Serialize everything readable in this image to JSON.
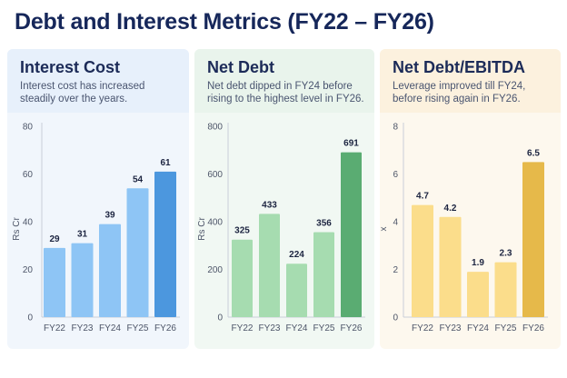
{
  "title": "Debt and Interest Metrics (FY22 – FY26)",
  "panels": [
    {
      "title": "Interest Cost",
      "subtitle": "Interest cost has increased steadily over the years.",
      "colors": {
        "background": "#f1f6fc",
        "bar": "#8ec5f5",
        "highlight": "#4c97de"
      }
    },
    {
      "title": "Net Debt",
      "subtitle": "Net debt dipped in FY24 before rising to the highest level in FY26.",
      "colors": {
        "background": "#f1f8f3",
        "bar": "#a6dcb0",
        "highlight": "#5aac72"
      }
    },
    {
      "title": "Net Debt/EBITDA",
      "subtitle": "Leverage improved till FY24, before rising again in FY26.",
      "colors": {
        "background": "#fdf8ee",
        "bar": "#fbdd8b",
        "highlight": "#e6b94a"
      }
    }
  ],
  "chart_data": [
    {
      "type": "bar",
      "categories": [
        "FY22",
        "FY23",
        "FY24",
        "FY25",
        "FY26"
      ],
      "values": [
        29,
        31,
        39,
        54,
        61
      ],
      "data_labels": [
        "29",
        "31",
        "39",
        "54",
        "61"
      ],
      "title": "Interest Cost",
      "xlabel": "",
      "ylabel": "Rs Cr",
      "ylim": [
        0,
        80
      ],
      "yticks": [
        0,
        20,
        40,
        60,
        80
      ],
      "grid": false,
      "highlight_category": "FY26"
    },
    {
      "type": "bar",
      "categories": [
        "FY22",
        "FY23",
        "FY24",
        "FY25",
        "FY26"
      ],
      "values": [
        325,
        433,
        224,
        356,
        691
      ],
      "data_labels": [
        "325",
        "433",
        "224",
        "356",
        "691"
      ],
      "title": "Net Debt",
      "xlabel": "",
      "ylabel": "Rs Cr",
      "ylim": [
        0,
        800
      ],
      "yticks": [
        0,
        200,
        400,
        600,
        800
      ],
      "grid": false,
      "highlight_category": "FY26"
    },
    {
      "type": "bar",
      "categories": [
        "FY22",
        "FY23",
        "FY24",
        "FY25",
        "FY26"
      ],
      "values": [
        4.7,
        4.2,
        1.9,
        2.3,
        6.5
      ],
      "data_labels": [
        "4.7",
        "4.2",
        "1.9",
        "2.3",
        "6.5"
      ],
      "title": "Net Debt/EBITDA",
      "xlabel": "",
      "ylabel": "x",
      "ylim": [
        0,
        8
      ],
      "yticks": [
        0,
        2,
        4,
        6,
        8
      ],
      "grid": false,
      "highlight_category": "FY26"
    }
  ]
}
